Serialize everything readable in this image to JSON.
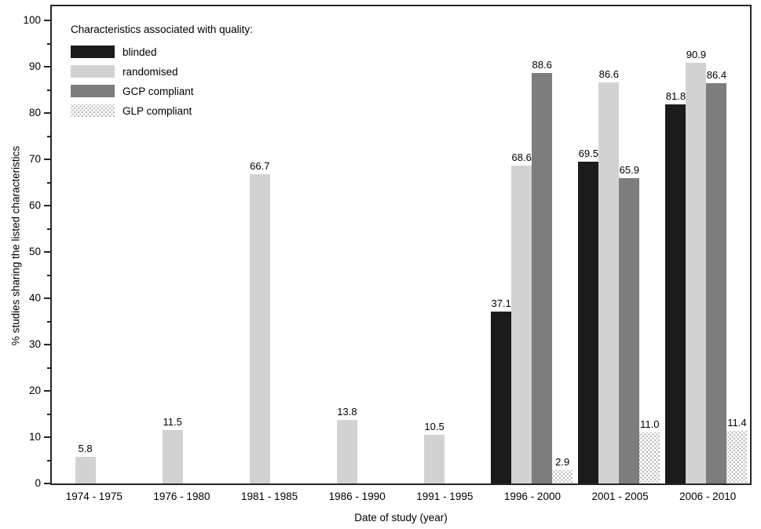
{
  "chart_data": {
    "type": "bar",
    "legend_title": "Characteristics associated with quality:",
    "xlabel": "Date of study (year)",
    "ylabel": "% studies sharing the listed characteristics",
    "ylim": [
      0,
      100
    ],
    "y_major_tick_step": 10,
    "y_minor_tick_step": 5,
    "grid": false,
    "legend_position": "top-left-inside",
    "frame_color": "#262626",
    "categories": [
      "1974 - 1975",
      "1976 - 1980",
      "1981 - 1985",
      "1986 - 1990",
      "1991 - 1995",
      "1996 - 2000",
      "2001 - 2005",
      "2006 - 2010"
    ],
    "series": [
      {
        "name": "blinded",
        "key": "blinded",
        "color": "#1b1b1b",
        "fill": "solid",
        "values": [
          null,
          null,
          null,
          null,
          null,
          37.1,
          69.5,
          81.8
        ],
        "labels": [
          null,
          null,
          null,
          null,
          null,
          "37.1",
          "69.5",
          "81.8"
        ]
      },
      {
        "name": "randomised",
        "key": "randomised",
        "color": "#d2d2d2",
        "fill": "solid",
        "values": [
          5.8,
          11.5,
          66.7,
          13.8,
          10.5,
          68.6,
          86.6,
          90.9
        ],
        "labels": [
          "5.8",
          "11.5",
          "66.7",
          "13.8",
          "10.5",
          "68.6",
          "86.6",
          "90.9"
        ]
      },
      {
        "name": "GCP compliant",
        "key": "gcp",
        "color": "#7d7d7d",
        "fill": "solid",
        "values": [
          null,
          null,
          null,
          null,
          null,
          88.6,
          65.9,
          86.4
        ],
        "labels": [
          null,
          null,
          null,
          null,
          null,
          "88.6",
          "65.9",
          "86.4"
        ]
      },
      {
        "name": "GLP compliant",
        "key": "glp",
        "color": "#bdbdbd",
        "fill": "stipple-dots",
        "values": [
          null,
          null,
          null,
          null,
          null,
          2.9,
          11.0,
          11.4
        ],
        "labels": [
          null,
          null,
          null,
          null,
          null,
          "2.9",
          "11.0",
          "11.4"
        ]
      }
    ]
  }
}
